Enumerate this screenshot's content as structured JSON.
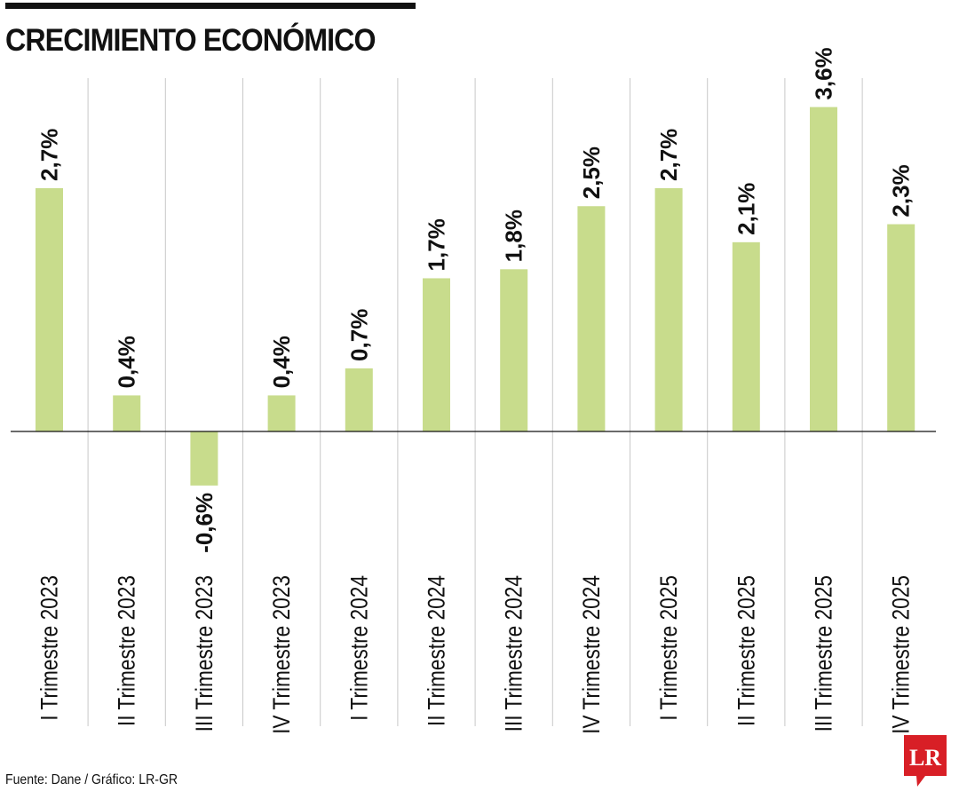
{
  "title": "CRECIMIENTO ECONÓMICO",
  "source": "Fuente: Dane / Gráfico: LR-GR",
  "logo_text": "LR",
  "colors": {
    "bar": "#c8dc8c",
    "text": "#111111",
    "logo": "#d81f26",
    "grid": "#c8c8c8"
  },
  "chart_data": {
    "type": "bar",
    "categories": [
      "I Trimestre 2023",
      "II Trimestre 2023",
      "III Trimestre 2023",
      "IV Trimestre 2023",
      "I Trimestre 2024",
      "II Trimestre 2024",
      "III Trimestre 2024",
      "IV Trimestre 2024",
      "I Trimestre 2025",
      "II Trimestre 2025",
      "III Trimestre 2025",
      "IV Trimestre 2025"
    ],
    "values": [
      2.7,
      0.4,
      -0.6,
      0.4,
      0.7,
      1.7,
      1.8,
      2.5,
      2.7,
      2.1,
      3.6,
      2.3
    ],
    "data_labels": [
      "2,7%",
      "0,4%",
      "-0,6%",
      "0,4%",
      "0,7%",
      "1,7%",
      "1,8%",
      "2,5%",
      "2,7%",
      "2,1%",
      "3,6%",
      "2,3%"
    ],
    "xlabel": "",
    "ylabel": "",
    "ylim": [
      -0.6,
      3.6
    ],
    "grid": "vertical separators",
    "legend": "none"
  }
}
